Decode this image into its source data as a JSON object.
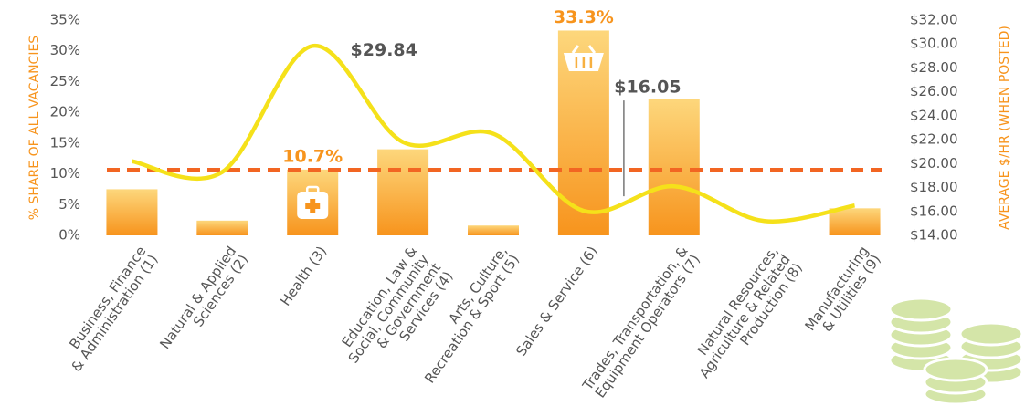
{
  "chart_data": {
    "type": "bar-line",
    "categories": [
      [
        "Business, Finance",
        "& Administration (1)"
      ],
      [
        "Natural & Applied",
        "Sciences (2)"
      ],
      [
        "Health (3)"
      ],
      [
        "Education, Law &",
        "Social, Community",
        "& Government",
        "Services (4)"
      ],
      [
        "Arts, Culture,",
        "Recreation & Sport (5)"
      ],
      [
        "Sales & Service (6)"
      ],
      [
        "Trades, Transportation, &",
        "Equipment Operators (7)"
      ],
      [
        "Natural Resources,",
        "Agriculture & Related",
        "Production (8)"
      ],
      [
        "Manufacturing",
        "& Utilities (9)"
      ]
    ],
    "series": [
      {
        "type": "bar",
        "color": "#f7941d",
        "values": [
          7.5,
          2.4,
          10.7,
          14.0,
          1.6,
          33.3,
          22.2,
          0,
          4.4
        ],
        "value_labels": [
          null,
          null,
          "10.7%",
          null,
          null,
          "33.3%",
          null,
          null,
          null
        ]
      },
      {
        "type": "line",
        "axis": "y2",
        "color": "#f5e11a",
        "values": [
          20.2,
          19.3,
          29.84,
          21.8,
          22.5,
          16.05,
          18.1,
          15.2,
          16.5
        ],
        "value_labels": [
          null,
          null,
          "$29.84",
          null,
          null,
          "$16.05",
          null,
          null,
          null
        ]
      }
    ],
    "reference_line": {
      "value": 10.6,
      "color": "#f26522"
    },
    "ylabel": "% SHARE OF ALL VACANCIES",
    "y2label": "AVERAGE $/HR (WHEN POSTED)",
    "ylim": [
      0,
      35
    ],
    "yticks": [
      {
        "value": 0,
        "label": "0%"
      },
      {
        "value": 5,
        "label": "5%"
      },
      {
        "value": 10,
        "label": "10%"
      },
      {
        "value": 15,
        "label": "15%"
      },
      {
        "value": 20,
        "label": "20%"
      },
      {
        "value": 25,
        "label": "25%"
      },
      {
        "value": 30,
        "label": "30%"
      },
      {
        "value": 35,
        "label": "35%"
      }
    ],
    "y2lim": [
      14,
      32
    ],
    "y2ticks": [
      {
        "value": 14,
        "label": "$14.00"
      },
      {
        "value": 16,
        "label": "$16.00"
      },
      {
        "value": 18,
        "label": "$18.00"
      },
      {
        "value": 20,
        "label": "$20.00"
      },
      {
        "value": 22,
        "label": "$22.00"
      },
      {
        "value": 24,
        "label": "$24.00"
      },
      {
        "value": 26,
        "label": "$26.00"
      },
      {
        "value": 28,
        "label": "$28.00"
      },
      {
        "value": 30,
        "label": "$30.00"
      },
      {
        "value": 32,
        "label": "$32.00"
      }
    ]
  }
}
